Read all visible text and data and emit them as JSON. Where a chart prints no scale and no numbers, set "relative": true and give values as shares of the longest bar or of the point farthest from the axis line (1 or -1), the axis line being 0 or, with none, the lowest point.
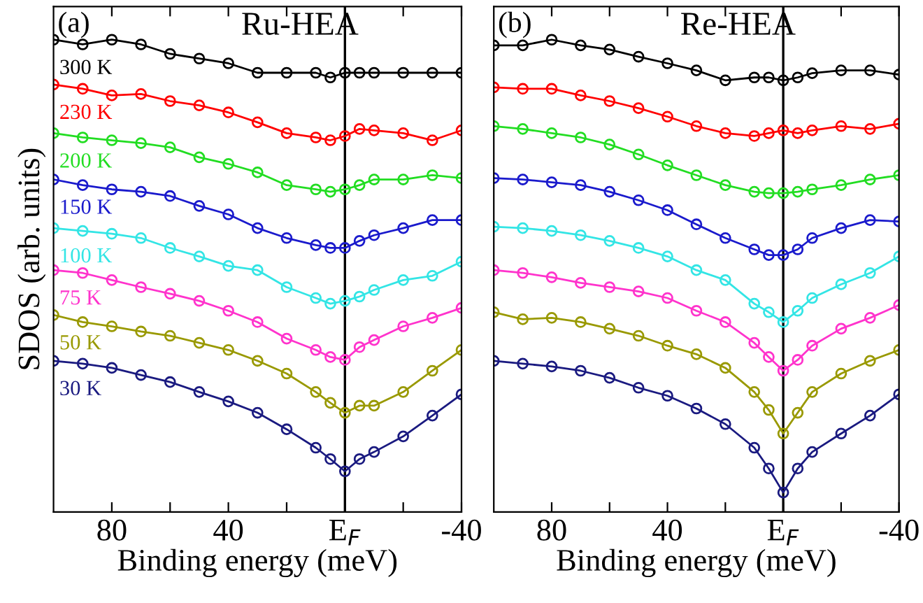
{
  "chart_data": [
    {
      "type": "line",
      "annotations": [
        "(a)",
        "Ru-HEA"
      ],
      "xlabel": "Binding energy (meV)",
      "ylabel": "SDOS (arb. units)",
      "relative": true,
      "marker": "circle",
      "line_style": "solid",
      "tick_labels": "x",
      "xlim": [
        100,
        -40
      ],
      "xticks": [
        80,
        {
          "value": 60,
          "label": null
        },
        40,
        {
          "value": 20,
          "label": null
        },
        {
          "value": 0,
          "label": "E$_{F}$"
        },
        {
          "value": -20,
          "label": null
        },
        -40
      ],
      "ref_lines": [
        {
          "axis": "x",
          "value": 0,
          "color": "#000000"
        }
      ],
      "x": [
        100,
        90,
        80,
        70,
        60,
        50,
        40,
        30,
        20,
        10,
        5,
        0,
        -5,
        -10,
        -20,
        -30,
        -40
      ],
      "series": [
        {
          "name": "300 K",
          "color": "#000000",
          "values": [
            1.0,
            0.99,
            1.0,
            0.99,
            0.97,
            0.96,
            0.95,
            0.93,
            0.93,
            0.93,
            0.92,
            0.93,
            0.93,
            0.93,
            0.93,
            0.93,
            0.93
          ]
        },
        {
          "name": "230 K",
          "color": "#ff0000",
          "values": [
            0.905,
            0.896,
            0.882,
            0.885,
            0.87,
            0.861,
            0.846,
            0.825,
            0.802,
            0.793,
            0.787,
            0.796,
            0.811,
            0.808,
            0.802,
            0.787,
            0.808
          ]
        },
        {
          "name": "200 K",
          "color": "#22dd22",
          "values": [
            0.802,
            0.793,
            0.787,
            0.781,
            0.772,
            0.751,
            0.737,
            0.719,
            0.692,
            0.683,
            0.678,
            0.683,
            0.692,
            0.704,
            0.704,
            0.713,
            0.707
          ]
        },
        {
          "name": "150 K",
          "color": "#1a1acc",
          "values": [
            0.704,
            0.692,
            0.683,
            0.678,
            0.669,
            0.648,
            0.63,
            0.601,
            0.58,
            0.565,
            0.559,
            0.559,
            0.574,
            0.586,
            0.601,
            0.618,
            0.618
          ]
        },
        {
          "name": "100 K",
          "color": "#33e5e5",
          "values": [
            0.601,
            0.595,
            0.589,
            0.58,
            0.559,
            0.541,
            0.521,
            0.512,
            0.476,
            0.453,
            0.441,
            0.447,
            0.456,
            0.47,
            0.491,
            0.5,
            0.53
          ]
        },
        {
          "name": "75 K",
          "color": "#ff33cc",
          "values": [
            0.512,
            0.506,
            0.491,
            0.476,
            0.462,
            0.447,
            0.426,
            0.402,
            0.367,
            0.343,
            0.328,
            0.322,
            0.349,
            0.364,
            0.393,
            0.411,
            0.432
          ]
        },
        {
          "name": "50 K",
          "color": "#999900",
          "values": [
            0.417,
            0.402,
            0.393,
            0.382,
            0.373,
            0.358,
            0.343,
            0.32,
            0.293,
            0.254,
            0.231,
            0.21,
            0.225,
            0.225,
            0.254,
            0.299,
            0.343
          ]
        },
        {
          "name": "30 K",
          "color": "#1a1a80",
          "values": [
            0.32,
            0.314,
            0.305,
            0.29,
            0.275,
            0.254,
            0.234,
            0.21,
            0.175,
            0.136,
            0.112,
            0.086,
            0.112,
            0.127,
            0.16,
            0.204,
            0.249
          ]
        }
      ]
    },
    {
      "type": "line",
      "annotations": [
        "(b)",
        "Re-HEA"
      ],
      "xlabel": "Binding energy (meV)",
      "relative": true,
      "marker": "circle",
      "line_style": "solid",
      "tick_labels": "x",
      "xlim": [
        100,
        -40
      ],
      "xticks": [
        80,
        {
          "value": 60,
          "label": null
        },
        40,
        {
          "value": 20,
          "label": null
        },
        {
          "value": 0,
          "label": "E$_{F}$"
        },
        {
          "value": -20,
          "label": null
        },
        -40
      ],
      "ref_lines": [
        {
          "axis": "x",
          "value": 0,
          "color": "#000000"
        }
      ],
      "x": [
        100,
        90,
        80,
        70,
        60,
        50,
        40,
        30,
        20,
        10,
        5,
        0,
        -5,
        -10,
        -20,
        -30,
        -40
      ],
      "series": [
        {
          "color": "#000000",
          "values": [
            0.988,
            0.988,
            1.0,
            0.988,
            0.979,
            0.964,
            0.95,
            0.935,
            0.914,
            0.92,
            0.92,
            0.914,
            0.92,
            0.929,
            0.935,
            0.935,
            0.926
          ]
        },
        {
          "color": "#ff0000",
          "values": [
            0.899,
            0.896,
            0.896,
            0.882,
            0.87,
            0.855,
            0.837,
            0.817,
            0.802,
            0.796,
            0.802,
            0.808,
            0.802,
            0.808,
            0.817,
            0.811,
            0.822
          ]
        },
        {
          "color": "#22dd22",
          "values": [
            0.817,
            0.811,
            0.802,
            0.793,
            0.778,
            0.757,
            0.734,
            0.713,
            0.692,
            0.678,
            0.675,
            0.675,
            0.678,
            0.683,
            0.692,
            0.704,
            0.713
          ]
        },
        {
          "color": "#1a1acc",
          "values": [
            0.707,
            0.704,
            0.698,
            0.692,
            0.678,
            0.66,
            0.639,
            0.609,
            0.58,
            0.556,
            0.544,
            0.544,
            0.556,
            0.58,
            0.601,
            0.618,
            0.615
          ]
        },
        {
          "color": "#33e5e5",
          "values": [
            0.604,
            0.601,
            0.595,
            0.586,
            0.574,
            0.559,
            0.541,
            0.512,
            0.491,
            0.441,
            0.423,
            0.402,
            0.426,
            0.453,
            0.482,
            0.506,
            0.541
          ]
        },
        {
          "color": "#ff33cc",
          "values": [
            0.512,
            0.506,
            0.497,
            0.485,
            0.476,
            0.467,
            0.453,
            0.426,
            0.402,
            0.358,
            0.328,
            0.299,
            0.322,
            0.352,
            0.388,
            0.411,
            0.438
          ]
        },
        {
          "color": "#999900",
          "values": [
            0.423,
            0.408,
            0.411,
            0.402,
            0.388,
            0.373,
            0.352,
            0.334,
            0.305,
            0.254,
            0.216,
            0.166,
            0.21,
            0.254,
            0.293,
            0.32,
            0.343
          ]
        },
        {
          "color": "#1a1a80",
          "values": [
            0.32,
            0.314,
            0.308,
            0.299,
            0.284,
            0.263,
            0.246,
            0.219,
            0.186,
            0.136,
            0.092,
            0.041,
            0.092,
            0.127,
            0.166,
            0.204,
            0.249
          ]
        }
      ]
    }
  ]
}
